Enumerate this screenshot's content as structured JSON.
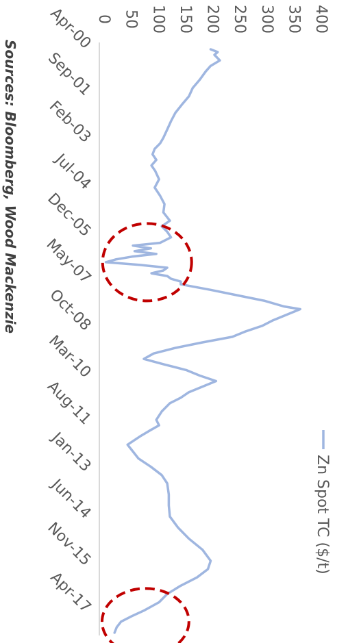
{
  "chart_data": {
    "type": "line",
    "orientation": "rotated-90-clockwise",
    "series": [
      {
        "name": "Zn Spot TC ($/t)",
        "color": "#9fb6e0",
        "points": [
          [
            "2000-04",
            205
          ],
          [
            "2000-05",
            218
          ],
          [
            "2000-06",
            212
          ],
          [
            "2000-08",
            222
          ],
          [
            "2000-10",
            205
          ],
          [
            "2000-12",
            196
          ],
          [
            "2001-03",
            185
          ],
          [
            "2001-06",
            172
          ],
          [
            "2001-09",
            165
          ],
          [
            "2001-12",
            152
          ],
          [
            "2002-03",
            140
          ],
          [
            "2002-06",
            132
          ],
          [
            "2002-09",
            125
          ],
          [
            "2002-12",
            118
          ],
          [
            "2003-02",
            112
          ],
          [
            "2003-04",
            102
          ],
          [
            "2003-06",
            98
          ],
          [
            "2003-08",
            105
          ],
          [
            "2003-10",
            96
          ],
          [
            "2003-12",
            103
          ],
          [
            "2004-03",
            110
          ],
          [
            "2004-06",
            102
          ],
          [
            "2004-09",
            112
          ],
          [
            "2004-12",
            120
          ],
          [
            "2005-03",
            118
          ],
          [
            "2005-06",
            130
          ],
          [
            "2005-08",
            115
          ],
          [
            "2005-10",
            125
          ],
          [
            "2005-12",
            132
          ],
          [
            "2006-02",
            112
          ],
          [
            "2006-03",
            62
          ],
          [
            "2006-04",
            95
          ],
          [
            "2006-05",
            65
          ],
          [
            "2006-06",
            105
          ],
          [
            "2006-07",
            60
          ],
          [
            "2006-08",
            30
          ],
          [
            "2006-09",
            12
          ],
          [
            "2006-10",
            75
          ],
          [
            "2006-11",
            125
          ],
          [
            "2006-12",
            118
          ],
          [
            "2007-01",
            96
          ],
          [
            "2007-02",
            125
          ],
          [
            "2007-03",
            132
          ],
          [
            "2007-04",
            150
          ],
          [
            "2007-05",
            150
          ],
          [
            "2007-07",
            205
          ],
          [
            "2007-09",
            255
          ],
          [
            "2007-11",
            305
          ],
          [
            "2008-01",
            340
          ],
          [
            "2008-02",
            370
          ],
          [
            "2008-04",
            345
          ],
          [
            "2008-06",
            320
          ],
          [
            "2008-08",
            300
          ],
          [
            "2008-10",
            270
          ],
          [
            "2008-12",
            245
          ],
          [
            "2009-02",
            190
          ],
          [
            "2009-04",
            140
          ],
          [
            "2009-06",
            100
          ],
          [
            "2009-08",
            82
          ],
          [
            "2009-10",
            120
          ],
          [
            "2009-12",
            160
          ],
          [
            "2010-02",
            185
          ],
          [
            "2010-04",
            215
          ],
          [
            "2010-06",
            190
          ],
          [
            "2010-08",
            165
          ],
          [
            "2010-10",
            150
          ],
          [
            "2010-12",
            130
          ],
          [
            "2011-03",
            115
          ],
          [
            "2011-06",
            105
          ],
          [
            "2011-08",
            110
          ],
          [
            "2011-10",
            92
          ],
          [
            "2011-12",
            75
          ],
          [
            "2012-03",
            52
          ],
          [
            "2012-05",
            60
          ],
          [
            "2012-08",
            72
          ],
          [
            "2012-11",
            95
          ],
          [
            "2013-02",
            115
          ],
          [
            "2013-05",
            125
          ],
          [
            "2013-09",
            128
          ],
          [
            "2014-01",
            128
          ],
          [
            "2014-05",
            130
          ],
          [
            "2014-09",
            145
          ],
          [
            "2015-01",
            165
          ],
          [
            "2015-05",
            190
          ],
          [
            "2015-09",
            205
          ],
          [
            "2015-12",
            200
          ],
          [
            "2016-03",
            180
          ],
          [
            "2016-06",
            150
          ],
          [
            "2016-09",
            125
          ],
          [
            "2016-12",
            110
          ],
          [
            "2017-03",
            82
          ],
          [
            "2017-05",
            60
          ],
          [
            "2017-07",
            40
          ],
          [
            "2017-09",
            32
          ],
          [
            "2017-11",
            28
          ]
        ]
      }
    ],
    "x_tick_labels": [
      "Apr-00",
      "Sep-01",
      "Feb-03",
      "Jul-04",
      "Dec-05",
      "May-07",
      "Oct-08",
      "Mar-10",
      "Aug-11",
      "Jan-13",
      "Jun-14",
      "Nov-15",
      "Apr-17"
    ],
    "x_tick_dates": [
      "2000-04",
      "2001-09",
      "2003-02",
      "2004-07",
      "2005-12",
      "2007-05",
      "2008-10",
      "2010-03",
      "2011-08",
      "2013-01",
      "2014-06",
      "2015-11",
      "2017-04"
    ],
    "x_range": [
      "2000-04",
      "2017-12"
    ],
    "y_ticks": [
      0,
      50,
      100,
      150,
      200,
      250,
      300,
      350,
      400
    ],
    "ylim": [
      0,
      400
    ],
    "grid": false,
    "legend": {
      "position": "right",
      "entries": [
        "Zn Spot TC ($/t)"
      ]
    },
    "highlight_color": "#c00000",
    "highlights": [
      {
        "x_center": "2006-09",
        "x_half_span_months": 14,
        "y_center": 88,
        "y_half_span": 82
      },
      {
        "x_center": "2017-07",
        "x_half_span_months": 12,
        "y_center": 85,
        "y_half_span": 80
      }
    ],
    "source": "Sources: Bloomberg, Wood Mackenzie"
  }
}
